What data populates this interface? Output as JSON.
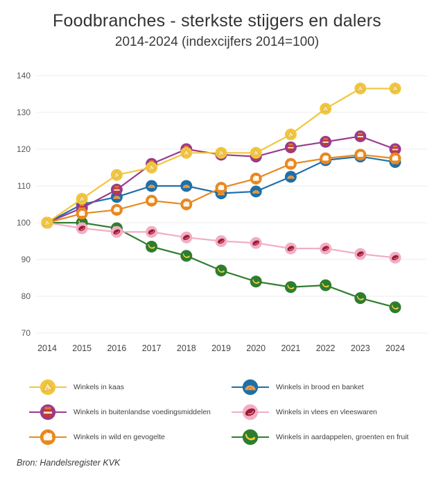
{
  "title": "Foodbranches - sterkste stijgers en dalers",
  "subtitle": "2014-2024 (indexcijfers 2014=100)",
  "source": "Bron: Handelsregister KVK",
  "colors": {
    "background": "#ffffff",
    "gridline": "#ececec",
    "axis_text": "#555555",
    "title_text": "#333333"
  },
  "chart_data": {
    "type": "line",
    "title": "Foodbranches - sterkste stijgers en dalers",
    "subtitle": "2014-2024 (indexcijfers 2014=100)",
    "xlabel": "",
    "ylabel": "",
    "x": [
      2014,
      2015,
      2016,
      2017,
      2018,
      2019,
      2020,
      2021,
      2022,
      2023,
      2024
    ],
    "ylim": [
      70,
      140
    ],
    "yticks": [
      70,
      80,
      90,
      100,
      110,
      120,
      130,
      140
    ],
    "grid": true,
    "legend_position": "bottom",
    "z_order": [
      5,
      4,
      3,
      1,
      2,
      0
    ],
    "series": [
      {
        "id": "kaas",
        "name": "Winkels in kaas",
        "icon": "cheese-icon",
        "color": "#F2C63C",
        "values": [
          100,
          106.5,
          113,
          115,
          119,
          119,
          119,
          124,
          131,
          136.5,
          136.5
        ]
      },
      {
        "id": "buitenlandse-voedingsmiddelen",
        "name": "Winkels in buitenlandse voedingsmiddelen",
        "icon": "jar-icon",
        "color": "#993B8C",
        "values": [
          100,
          104,
          109,
          116,
          120,
          118.5,
          118,
          120.5,
          122,
          123.5,
          120
        ]
      },
      {
        "id": "wild-en-gevogelte",
        "name": "Winkels in wild en gevogelte",
        "icon": "poultry-icon",
        "color": "#E8891F",
        "values": [
          100,
          102.5,
          103.5,
          106,
          105,
          109.5,
          112,
          116,
          117.5,
          118.5,
          117.5
        ]
      },
      {
        "id": "brood-en-banket",
        "name": "Winkels in brood en banket",
        "icon": "bread-icon",
        "color": "#1F6FA8",
        "values": [
          100,
          105,
          107,
          110,
          110,
          108,
          108.5,
          112.5,
          117,
          118,
          116.5
        ]
      },
      {
        "id": "vlees-en-vleeswaren",
        "name": "Winkels in vlees en vleeswaren",
        "icon": "meat-icon",
        "color": "#F2ADC6",
        "values": [
          100,
          98.5,
          97.5,
          97.5,
          96,
          95,
          94.5,
          93,
          93,
          91.5,
          90.5
        ]
      },
      {
        "id": "aardappelen-groenten-en-fruit",
        "name": "Winkels in aardappelen, groenten en fruit",
        "icon": "banana-icon",
        "color": "#2E7D2F",
        "values": [
          100,
          100,
          98.5,
          93.5,
          91,
          87,
          84,
          82.5,
          83,
          79.5,
          77
        ]
      }
    ]
  }
}
